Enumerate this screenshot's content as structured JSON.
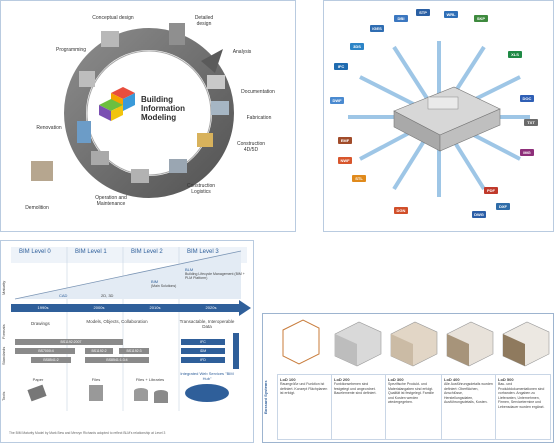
{
  "cycle": {
    "title_line1": "Building",
    "title_line2": "Information",
    "title_line3": "Modeling",
    "stages": [
      {
        "label": "Conceptual design"
      },
      {
        "label": "Detailed design"
      },
      {
        "label": "Analysis"
      },
      {
        "label": "Documentation"
      },
      {
        "label": "Fabrication"
      },
      {
        "label": "Construction 4D/5D"
      },
      {
        "label": "Construction Logistics"
      },
      {
        "label": "Operation and Maintenance"
      },
      {
        "label": "Demolition"
      },
      {
        "label": "Renovation"
      },
      {
        "label": "Programming"
      }
    ]
  },
  "files": {
    "formats": [
      "IGES",
      "DBI",
      "STP",
      "WRL",
      "SKP",
      "3DS",
      "IFC",
      "DWF",
      "XLS",
      "PDF",
      "DWG",
      "DXF",
      "STL",
      "DGN",
      "DOC",
      "TXT",
      "EMF",
      "NWF",
      "IMG"
    ]
  },
  "levels": {
    "headers": [
      "BIM Level 0",
      "BIM Level 1",
      "BIM Level 2",
      "BIM Level 3"
    ],
    "side_labels": [
      "Maturity",
      "Formats",
      "Standards",
      "Tools"
    ],
    "years": [
      "1990s",
      "2000s",
      "2010s",
      "2020s"
    ],
    "cad": "CAD",
    "cad2d3d": "2D, 3D",
    "bim_models": "BIM",
    "bim_models_sub": "(Main Solutions)",
    "blm": "BLM",
    "blm_sub": "Building Lifecycle Management (BIM + PLM Platform)",
    "formats": [
      "Drawings",
      "Models, Objects, Collaboration",
      "Transactable, Interoperable Data"
    ],
    "standards": [
      "BS1192:2007",
      "BS7000:4",
      "BS8541:2",
      "BS1192:2",
      "BS1192:3",
      "BS8541:1:3:4",
      "IFC",
      "IDM",
      "IFD"
    ],
    "tools": [
      "Paper",
      "Files",
      "Files + Libraries",
      "Integrated Web Services \"BIM Hub\""
    ],
    "footnote": "The BIM Maturity Model by Mark Bew and Mervyn Richards adopted to reflect BLM's relationship at Level 3"
  },
  "lod": {
    "side_label": "Bossard Systems",
    "items": [
      {
        "title": "LoD 100",
        "text": "Raumgröße und Funktion ist definiert. Konzept Flächplanen ist erfolgt."
      },
      {
        "title": "LoD 200",
        "text": "Funktionsebenen sind festgelegt und angeordnet. Bauelemente sind definiert."
      },
      {
        "title": "LoD 300",
        "text": "Spezifische Produkt- und Materialangaben sind erfolgt. Qualität ist festgelegt. Familie und Kosten werden wiedergegeben."
      },
      {
        "title": "LoD 400",
        "text": "Alle Ausführungsdetails wurden definiert: Oberflächen, Anschlüsse, Herstellungsdaten, Ausführungsdetails, Kosten."
      },
      {
        "title": "LoD 500",
        "text": "Bau- und Produktdokumentationen sind vorhanden. Angaben zu Lieferanten, Unternehmen, Firmen, Servicetermine und Lebensdauer wurden ergänzt."
      }
    ]
  },
  "colors": {
    "accent_blue": "#2f5f9a",
    "arrow_grey": "#8c8c8c",
    "cycle_ring": "#6e6e6e",
    "light_blue": "#9ec6e6"
  }
}
